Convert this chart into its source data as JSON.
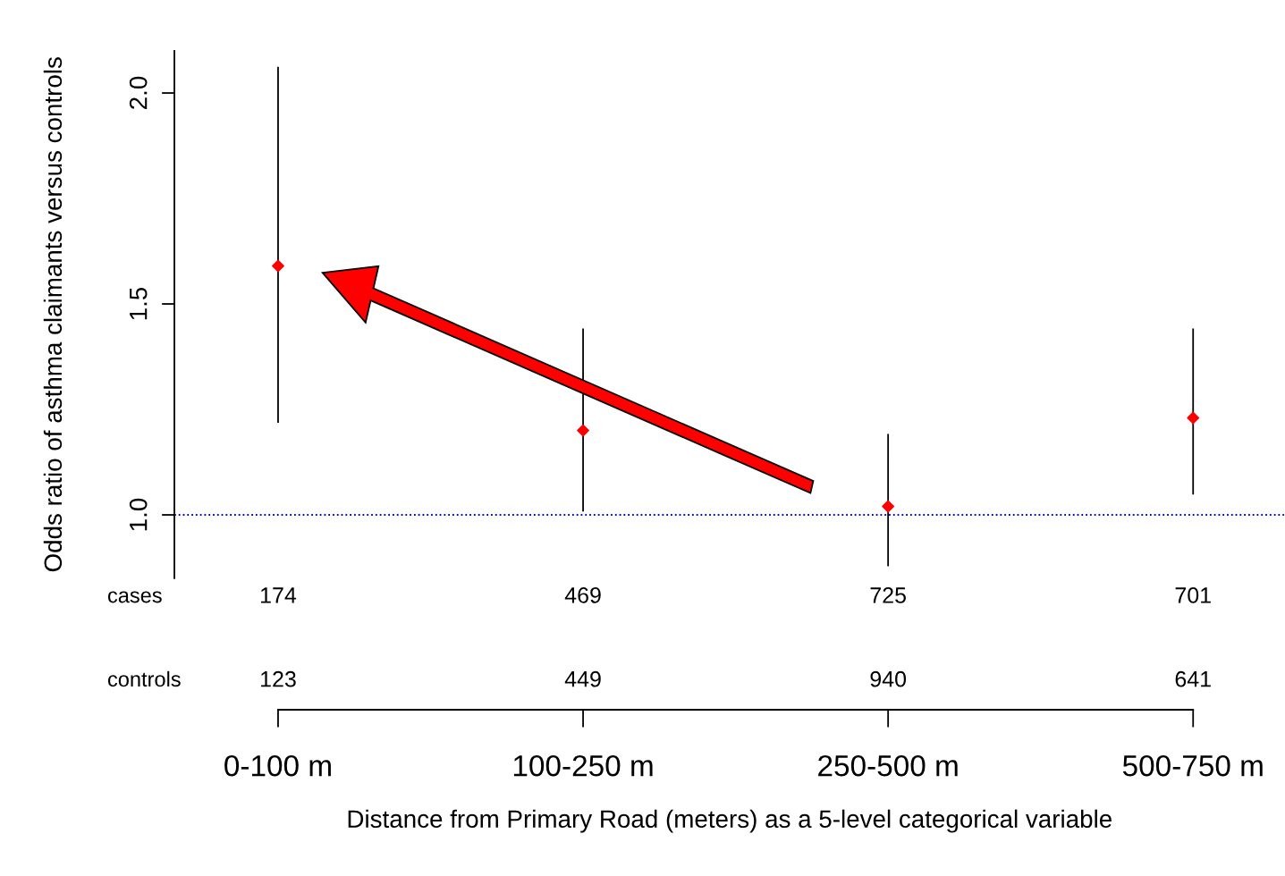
{
  "chart_data": {
    "type": "scatter",
    "xlabel": "Distance from Primary Road (meters) as a 5-level categorical variable",
    "ylabel": "Odds ratio of asthma claimants versus controls",
    "categories": [
      "0-100 m",
      "100-250 m",
      "250-500 m",
      "500-750 m"
    ],
    "values": [
      1.59,
      1.2,
      1.02,
      1.23
    ],
    "errors": [
      [
        1.22,
        2.06
      ],
      [
        1.01,
        1.44
      ],
      [
        0.88,
        1.19
      ],
      [
        1.05,
        1.44
      ]
    ],
    "color": "#ff0000",
    "marker": "diamond",
    "ylim": [
      0.85,
      2.1
    ],
    "yticks": [
      {
        "value": 1,
        "label": "1.0"
      },
      {
        "value": 1.5,
        "label": "1.5"
      },
      {
        "value": 2,
        "label": "2.0"
      }
    ],
    "ref_lines": [
      {
        "axis": "y",
        "value": 1,
        "color": "#0000ff",
        "line_style": "dotted"
      }
    ],
    "annotations": [
      "cases",
      "174",
      "469",
      "725",
      "701",
      "controls",
      "123",
      "449",
      "940",
      "641"
    ]
  }
}
